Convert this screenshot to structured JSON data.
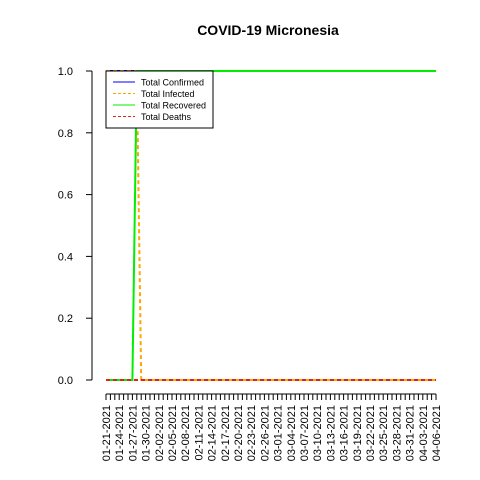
{
  "chart_data": {
    "type": "line",
    "title": "COVID-19 Micronesia",
    "xlabel": "",
    "ylabel": "",
    "ylim": [
      0,
      1
    ],
    "yticks": [
      "0.0",
      "0.2",
      "0.4",
      "0.6",
      "0.8",
      "1.0"
    ],
    "x": [
      "01-21-2021",
      "01-22-2021",
      "01-23-2021",
      "01-24-2021",
      "01-25-2021",
      "01-26-2021",
      "01-27-2021",
      "01-28-2021",
      "01-29-2021",
      "01-30-2021",
      "01-31-2021",
      "02-01-2021",
      "02-02-2021",
      "02-03-2021",
      "02-04-2021",
      "02-05-2021",
      "02-06-2021",
      "02-07-2021",
      "02-08-2021",
      "02-09-2021",
      "02-10-2021",
      "02-11-2021",
      "02-12-2021",
      "02-13-2021",
      "02-14-2021",
      "02-15-2021",
      "02-16-2021",
      "02-17-2021",
      "02-18-2021",
      "02-19-2021",
      "02-20-2021",
      "02-21-2021",
      "02-22-2021",
      "02-23-2021",
      "02-24-2021",
      "02-25-2021",
      "02-26-2021",
      "02-27-2021",
      "02-28-2021",
      "03-01-2021",
      "03-02-2021",
      "03-03-2021",
      "03-04-2021",
      "03-05-2021",
      "03-06-2021",
      "03-07-2021",
      "03-08-2021",
      "03-09-2021",
      "03-10-2021",
      "03-11-2021",
      "03-12-2021",
      "03-13-2021",
      "03-14-2021",
      "03-15-2021",
      "03-16-2021",
      "03-17-2021",
      "03-18-2021",
      "03-19-2021",
      "03-20-2021",
      "03-21-2021",
      "03-22-2021",
      "03-23-2021",
      "03-24-2021",
      "03-25-2021",
      "03-26-2021",
      "03-27-2021",
      "03-28-2021",
      "03-29-2021",
      "03-30-2021",
      "03-31-2021",
      "04-01-2021",
      "04-02-2021",
      "04-03-2021",
      "04-04-2021",
      "04-05-2021",
      "04-06-2021"
    ],
    "xtick_labels": [
      "01-21-2021",
      "01-24-2021",
      "01-27-2021",
      "01-30-2021",
      "02-02-2021",
      "02-05-2021",
      "02-08-2021",
      "02-11-2021",
      "02-14-2021",
      "02-17-2021",
      "02-20-2021",
      "02-23-2021",
      "02-26-2021",
      "03-01-2021",
      "03-04-2021",
      "03-07-2021",
      "03-10-2021",
      "03-13-2021",
      "03-16-2021",
      "03-19-2021",
      "03-22-2021",
      "03-25-2021",
      "03-28-2021",
      "03-31-2021",
      "04-03-2021",
      "04-06-2021"
    ],
    "series": [
      {
        "name": "Total Confirmed",
        "color": "#0000ff",
        "dash": "solid",
        "values": [
          1,
          1,
          1,
          1,
          1,
          1,
          1,
          1,
          1,
          1,
          1,
          1,
          1,
          1,
          1,
          1,
          1,
          1,
          1,
          1,
          1,
          1,
          1,
          1,
          1,
          1,
          1,
          1,
          1,
          1,
          1,
          1,
          1,
          1,
          1,
          1,
          1,
          1,
          1,
          1,
          1,
          1,
          1,
          1,
          1,
          1,
          1,
          1,
          1,
          1,
          1,
          1,
          1,
          1,
          1,
          1,
          1,
          1,
          1,
          1,
          1,
          1,
          1,
          1,
          1,
          1,
          1,
          1,
          1,
          1,
          1,
          1,
          1,
          1,
          1,
          1
        ]
      },
      {
        "name": "Total Infected",
        "color": "#ffa500",
        "dash": "dashed",
        "values": [
          1,
          1,
          1,
          1,
          1,
          1,
          1,
          1,
          0,
          0,
          0,
          0,
          0,
          0,
          0,
          0,
          0,
          0,
          0,
          0,
          0,
          0,
          0,
          0,
          0,
          0,
          0,
          0,
          0,
          0,
          0,
          0,
          0,
          0,
          0,
          0,
          0,
          0,
          0,
          0,
          0,
          0,
          0,
          0,
          0,
          0,
          0,
          0,
          0,
          0,
          0,
          0,
          0,
          0,
          0,
          0,
          0,
          0,
          0,
          0,
          0,
          0,
          0,
          0,
          0,
          0,
          0,
          0,
          0,
          0,
          0,
          0,
          0,
          0,
          0,
          0
        ]
      },
      {
        "name": "Total Recovered",
        "color": "#00ee00",
        "dash": "solid",
        "values": [
          0,
          0,
          0,
          0,
          0,
          0,
          0,
          1,
          1,
          1,
          1,
          1,
          1,
          1,
          1,
          1,
          1,
          1,
          1,
          1,
          1,
          1,
          1,
          1,
          1,
          1,
          1,
          1,
          1,
          1,
          1,
          1,
          1,
          1,
          1,
          1,
          1,
          1,
          1,
          1,
          1,
          1,
          1,
          1,
          1,
          1,
          1,
          1,
          1,
          1,
          1,
          1,
          1,
          1,
          1,
          1,
          1,
          1,
          1,
          1,
          1,
          1,
          1,
          1,
          1,
          1,
          1,
          1,
          1,
          1,
          1,
          1,
          1,
          1,
          1,
          1
        ]
      },
      {
        "name": "Total Deaths",
        "color": "#dd2222",
        "dash": "dashed",
        "values": [
          0,
          0,
          0,
          0,
          0,
          0,
          0,
          0,
          0,
          0,
          0,
          0,
          0,
          0,
          0,
          0,
          0,
          0,
          0,
          0,
          0,
          0,
          0,
          0,
          0,
          0,
          0,
          0,
          0,
          0,
          0,
          0,
          0,
          0,
          0,
          0,
          0,
          0,
          0,
          0,
          0,
          0,
          0,
          0,
          0,
          0,
          0,
          0,
          0,
          0,
          0,
          0,
          0,
          0,
          0,
          0,
          0,
          0,
          0,
          0,
          0,
          0,
          0,
          0,
          0,
          0,
          0,
          0,
          0,
          0,
          0,
          0,
          0,
          0,
          0,
          0
        ]
      }
    ],
    "legend_position": "top-left",
    "grid": false
  }
}
